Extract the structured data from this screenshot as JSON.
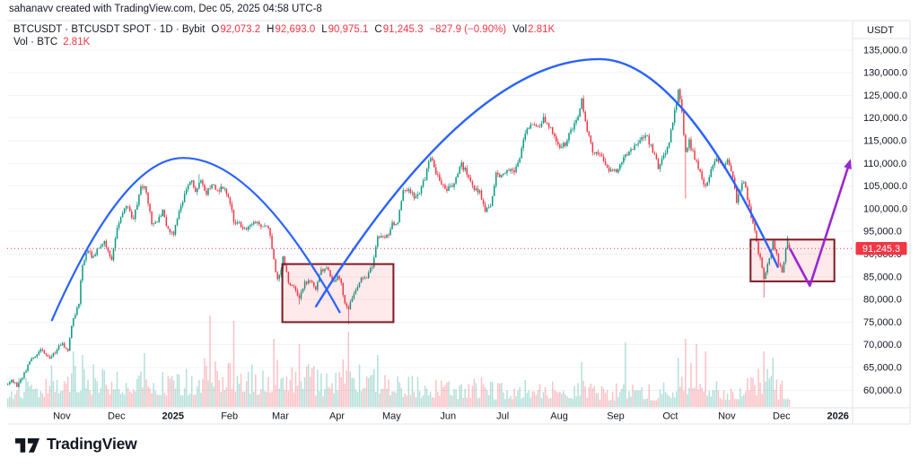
{
  "header": {
    "attribution": "sahanavv created with TradingView.com, Dec 05, 2025 04:58 UTC-8"
  },
  "legend": {
    "title": "BTCUSDT · BTCUSDT SPOT · 1D · Bybit",
    "ohlc": [
      {
        "k": "O",
        "v": "92,073.2"
      },
      {
        "k": "H",
        "v": "92,693.0"
      },
      {
        "k": "L",
        "v": "90,975.1"
      },
      {
        "k": "C",
        "v": "91,245.3"
      }
    ],
    "change": "−827.9 (−0.90%)",
    "vol_label": "Vol",
    "vol_value": "2.81K",
    "row2_label": "Vol · BTC",
    "row2_value": "2.81K"
  },
  "footer": {
    "logo_text": "TradingView"
  },
  "chart_data": {
    "type": "candlestick",
    "symbol": "BTCUSDT",
    "exchange": "Bybit",
    "interval": "1D",
    "ohlc_last": {
      "open": 92073.2,
      "high": 92693.0,
      "low": 90975.1,
      "close": 91245.3,
      "change_text": "−827.9 (−0.90%)",
      "volume_text": "2.81K"
    },
    "price_line": {
      "value": 91245.3,
      "label": "91,245.3"
    },
    "y_axis": {
      "unit": "USDT",
      "tick_values": [
        135000,
        130000,
        125000,
        120000,
        115000,
        110000,
        105000,
        100000,
        95000,
        90000,
        85000,
        80000,
        75000,
        70000,
        65000,
        60000
      ],
      "tick_labels": [
        "135,000.0",
        "130,000.0",
        "125,000.0",
        "120,000.0",
        "115,000.0",
        "110,000.0",
        "105,000.0",
        "100,000.0",
        "95,000.0",
        "90,000.0",
        "85,000.0",
        "80,000.0",
        "75,000.0",
        "70,000.0",
        "65,000.0",
        "60,000.0"
      ],
      "ylim": [
        57500,
        137500
      ]
    },
    "x_axis": {
      "start": "Oct 2024",
      "labels": [
        {
          "text": "Nov",
          "day": 31,
          "bold": false
        },
        {
          "text": "Dec",
          "day": 61,
          "bold": false
        },
        {
          "text": "2025",
          "day": 92,
          "bold": true
        },
        {
          "text": "Feb",
          "day": 123,
          "bold": false
        },
        {
          "text": "Mar",
          "day": 151,
          "bold": false
        },
        {
          "text": "Apr",
          "day": 182,
          "bold": false
        },
        {
          "text": "May",
          "day": 212,
          "bold": false
        },
        {
          "text": "Jun",
          "day": 243,
          "bold": false
        },
        {
          "text": "Jul",
          "day": 273,
          "bold": false
        },
        {
          "text": "Aug",
          "day": 304,
          "bold": false
        },
        {
          "text": "Sep",
          "day": 335,
          "bold": false
        },
        {
          "text": "Oct",
          "day": 365,
          "bold": false
        },
        {
          "text": "Nov",
          "day": 396,
          "bold": false
        },
        {
          "text": "Dec",
          "day": 426,
          "bold": false
        },
        {
          "text": "2026",
          "day": 457,
          "bold": true
        }
      ]
    },
    "price_path_anchors": [
      [
        0,
        61200
      ],
      [
        3,
        62000
      ],
      [
        6,
        61000
      ],
      [
        9,
        62800
      ],
      [
        13,
        66200
      ],
      [
        16,
        67500
      ],
      [
        20,
        69000
      ],
      [
        23,
        67200
      ],
      [
        26,
        67800
      ],
      [
        29,
        69600
      ],
      [
        31,
        70200
      ],
      [
        34,
        68400
      ],
      [
        36,
        74500
      ],
      [
        38,
        76800
      ],
      [
        40,
        79500
      ],
      [
        42,
        88000
      ],
      [
        45,
        90500
      ],
      [
        48,
        89200
      ],
      [
        51,
        91800
      ],
      [
        54,
        93100
      ],
      [
        56,
        90800
      ],
      [
        58,
        88500
      ],
      [
        61,
        96300
      ],
      [
        64,
        98500
      ],
      [
        66,
        100800
      ],
      [
        70,
        97500
      ],
      [
        74,
        104300
      ],
      [
        76,
        105000
      ],
      [
        80,
        96800
      ],
      [
        83,
        97300
      ],
      [
        86,
        99500
      ],
      [
        89,
        95200
      ],
      [
        92,
        94800
      ],
      [
        95,
        99500
      ],
      [
        98,
        103000
      ],
      [
        101,
        106500
      ],
      [
        104,
        104000
      ],
      [
        107,
        106800
      ],
      [
        110,
        103500
      ],
      [
        113,
        105500
      ],
      [
        116,
        103800
      ],
      [
        119,
        105000
      ],
      [
        121,
        103000
      ],
      [
        123,
        101500
      ],
      [
        125,
        97200
      ],
      [
        128,
        96800
      ],
      [
        131,
        95800
      ],
      [
        134,
        96100
      ],
      [
        137,
        97300
      ],
      [
        140,
        95900
      ],
      [
        143,
        96500
      ],
      [
        145,
        93800
      ],
      [
        147,
        88500
      ],
      [
        149,
        84500
      ],
      [
        151,
        86100
      ],
      [
        152,
        89800
      ],
      [
        155,
        83500
      ],
      [
        158,
        82800
      ],
      [
        161,
        80200
      ],
      [
        164,
        83800
      ],
      [
        167,
        84000
      ],
      [
        170,
        82500
      ],
      [
        173,
        86500
      ],
      [
        176,
        87200
      ],
      [
        179,
        83800
      ],
      [
        182,
        85200
      ],
      [
        184,
        83500
      ],
      [
        186,
        79200
      ],
      [
        188,
        77800
      ],
      [
        190,
        80500
      ],
      [
        192,
        82100
      ],
      [
        195,
        84500
      ],
      [
        198,
        84900
      ],
      [
        201,
        87500
      ],
      [
        204,
        93400
      ],
      [
        207,
        93900
      ],
      [
        210,
        94500
      ],
      [
        212,
        96500
      ],
      [
        215,
        97200
      ],
      [
        218,
        104100
      ],
      [
        221,
        104000
      ],
      [
        224,
        102500
      ],
      [
        227,
        103800
      ],
      [
        230,
        106800
      ],
      [
        233,
        111300
      ],
      [
        236,
        107800
      ],
      [
        239,
        105500
      ],
      [
        242,
        104200
      ],
      [
        246,
        105800
      ],
      [
        250,
        109800
      ],
      [
        254,
        107200
      ],
      [
        257,
        104500
      ],
      [
        260,
        103800
      ],
      [
        263,
        99200
      ],
      [
        266,
        101200
      ],
      [
        269,
        107500
      ],
      [
        273,
        107200
      ],
      [
        276,
        108800
      ],
      [
        279,
        108000
      ],
      [
        282,
        111000
      ],
      [
        285,
        116500
      ],
      [
        288,
        118500
      ],
      [
        291,
        117800
      ],
      [
        295,
        119600
      ],
      [
        298,
        118200
      ],
      [
        301,
        116500
      ],
      [
        304,
        113200
      ],
      [
        307,
        114500
      ],
      [
        310,
        116800
      ],
      [
        313,
        119500
      ],
      [
        316,
        123800
      ],
      [
        319,
        117500
      ],
      [
        322,
        113000
      ],
      [
        325,
        112500
      ],
      [
        328,
        110800
      ],
      [
        331,
        108600
      ],
      [
        335,
        108200
      ],
      [
        338,
        110800
      ],
      [
        342,
        112500
      ],
      [
        346,
        114200
      ],
      [
        349,
        116300
      ],
      [
        352,
        115500
      ],
      [
        355,
        112800
      ],
      [
        358,
        109300
      ],
      [
        361,
        111800
      ],
      [
        364,
        114500
      ],
      [
        366,
        119000
      ],
      [
        369,
        125900
      ],
      [
        371,
        121000
      ],
      [
        373,
        112000
      ],
      [
        375,
        114800
      ],
      [
        378,
        111200
      ],
      [
        381,
        108000
      ],
      [
        384,
        104800
      ],
      [
        387,
        108500
      ],
      [
        390,
        111500
      ],
      [
        393,
        109800
      ],
      [
        396,
        110500
      ],
      [
        399,
        106800
      ],
      [
        401,
        101500
      ],
      [
        403,
        104500
      ],
      [
        405,
        106000
      ],
      [
        407,
        102500
      ],
      [
        409,
        97500
      ],
      [
        411,
        94800
      ],
      [
        413,
        90500
      ],
      [
        415,
        87000
      ],
      [
        416,
        84200
      ],
      [
        418,
        87500
      ],
      [
        421,
        92500
      ],
      [
        424,
        88200
      ],
      [
        426,
        86300
      ],
      [
        429,
        93300
      ],
      [
        430,
        91245
      ]
    ],
    "wick_overrides": [
      {
        "day": 106,
        "high": 107600
      },
      {
        "day": 161,
        "low": 78900
      },
      {
        "day": 188,
        "low": 74500
      },
      {
        "day": 316,
        "high": 124500
      },
      {
        "day": 369,
        "high": 126200
      },
      {
        "day": 373,
        "low": 102300
      },
      {
        "day": 416,
        "low": 80400
      }
    ],
    "volume_profile_anchors": [
      [
        0,
        26
      ],
      [
        20,
        36
      ],
      [
        36,
        58
      ],
      [
        45,
        46
      ],
      [
        61,
        42
      ],
      [
        76,
        48
      ],
      [
        92,
        40
      ],
      [
        106,
        46
      ],
      [
        112,
        55
      ],
      [
        125,
        58
      ],
      [
        140,
        40
      ],
      [
        151,
        52
      ],
      [
        161,
        48
      ],
      [
        176,
        38
      ],
      [
        188,
        52
      ],
      [
        205,
        40
      ],
      [
        218,
        36
      ],
      [
        233,
        34
      ],
      [
        250,
        28
      ],
      [
        263,
        32
      ],
      [
        273,
        24
      ],
      [
        288,
        30
      ],
      [
        304,
        28
      ],
      [
        316,
        32
      ],
      [
        331,
        24
      ],
      [
        340,
        26
      ],
      [
        349,
        24
      ],
      [
        358,
        22
      ],
      [
        369,
        36
      ],
      [
        373,
        48
      ],
      [
        379,
        44
      ],
      [
        384,
        40
      ],
      [
        396,
        24
      ],
      [
        409,
        34
      ],
      [
        416,
        46
      ],
      [
        424,
        28
      ],
      [
        430,
        24
      ]
    ],
    "volume_spikes": {
      "42": 58,
      "76": 60,
      "112": 102,
      "125": 96,
      "147": 76,
      "161": 70,
      "188": 84,
      "204": 58,
      "316": 50,
      "340": 72,
      "369": 55,
      "373": 76,
      "379": 70,
      "384": 62,
      "416": 62,
      "421": 55
    },
    "annotations": {
      "arcs": [
        {
          "name": "left-arch",
          "points": [
            [
              25.5,
              75400
            ],
            [
              97.5,
              111200
            ],
            [
              183.5,
              77200
            ]
          ],
          "width": 2.2
        },
        {
          "name": "main-arch",
          "points": [
            [
              170.5,
              78500
            ],
            [
              326,
              133000
            ],
            [
              424,
              87200
            ]
          ],
          "width": 2.4
        }
      ],
      "boxes": [
        {
          "name": "accumulation-box-spring",
          "day_start": 152,
          "day_end": 213,
          "price_top": 87800,
          "price_bottom": 75000
        },
        {
          "name": "accumulation-box-current",
          "day_start": 409,
          "day_end": 455,
          "price_top": 93200,
          "price_bottom": 84000
        }
      ],
      "arrow": {
        "name": "projection-arrow",
        "points": [
          [
            430.8,
            91100
          ],
          [
            441.6,
            83000
          ],
          [
            464,
            111000
          ]
        ],
        "width": 2.6
      }
    },
    "colors": {
      "up": "#089981",
      "down": "#f23645",
      "volume_up": "rgba(8,153,129,0.30)",
      "volume_down": "rgba(242,54,69,0.30)",
      "arc": "#2962ff",
      "box_stroke": "#801922",
      "box_fill": "rgba(242,54,69,0.11)",
      "arrow": "#9b27ce",
      "price_line": "#f23645",
      "price_label_bg": "#f23645",
      "grid": "#f0f3fa",
      "border": "#e0e3eb",
      "axis_text": "#131722"
    }
  }
}
